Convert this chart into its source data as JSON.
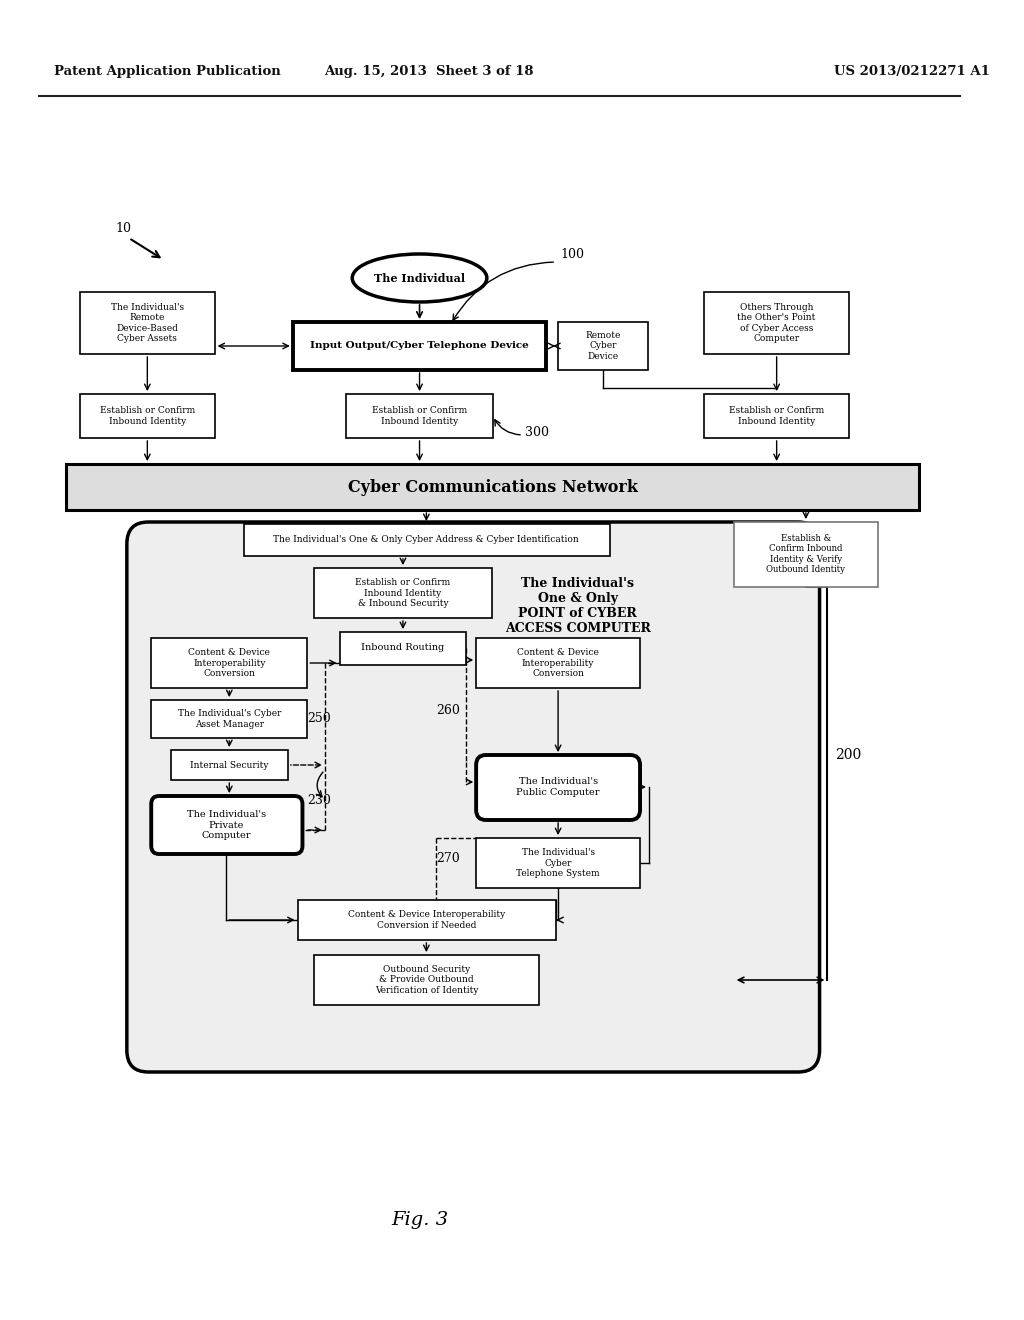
{
  "bg_color": "#ffffff",
  "header_left": "Patent Application Publication",
  "header_mid": "Aug. 15, 2013  Sheet 3 of 18",
  "header_right": "US 2013/0212271 A1",
  "fig_label": "Fig. 3",
  "label_10": "10",
  "label_100": "100",
  "label_200": "200",
  "label_230": "230",
  "label_250": "250",
  "label_260": "260",
  "label_270": "270",
  "label_300": "300"
}
